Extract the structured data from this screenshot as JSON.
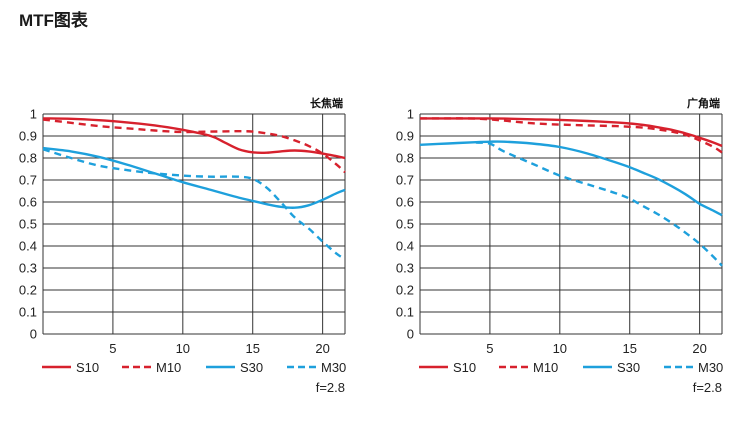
{
  "page": {
    "title": "MTF图表"
  },
  "colors": {
    "red": "#d7212d",
    "blue": "#1ea0dc",
    "grid": "#333333"
  },
  "chart_data": [
    {
      "type": "line",
      "title": "长焦端",
      "x_range": [
        0,
        21.6
      ],
      "ylim": [
        0,
        1
      ],
      "x_ticks": [
        5,
        10,
        15,
        20
      ],
      "y_ticks": [
        0,
        0.1,
        0.2,
        0.3,
        0.4,
        0.5,
        0.6,
        0.7,
        0.8,
        0.9,
        1
      ],
      "grid": true,
      "legend_position": "bottom",
      "footnote": "f=2.8",
      "series": [
        {
          "name": "S10",
          "color": "#d7212d",
          "dash": false,
          "x": [
            0,
            2,
            4,
            6,
            8,
            10,
            12,
            13,
            14,
            15,
            16,
            17,
            18,
            19,
            20,
            21,
            21.6
          ],
          "y": [
            0.98,
            0.978,
            0.972,
            0.962,
            0.948,
            0.928,
            0.9,
            0.87,
            0.84,
            0.826,
            0.824,
            0.83,
            0.834,
            0.83,
            0.82,
            0.808,
            0.8
          ]
        },
        {
          "name": "M10",
          "color": "#d7212d",
          "dash": true,
          "x": [
            0,
            2,
            4,
            6,
            8,
            10,
            12,
            14,
            15,
            16,
            17,
            18,
            19,
            20,
            21,
            21.6
          ],
          "y": [
            0.975,
            0.96,
            0.945,
            0.935,
            0.925,
            0.918,
            0.92,
            0.922,
            0.92,
            0.912,
            0.9,
            0.88,
            0.855,
            0.82,
            0.77,
            0.735
          ]
        },
        {
          "name": "S30",
          "color": "#1ea0dc",
          "dash": false,
          "x": [
            0,
            2,
            4,
            6,
            8,
            10,
            12,
            14,
            15,
            16,
            17,
            18,
            19,
            20,
            21,
            21.6
          ],
          "y": [
            0.845,
            0.83,
            0.805,
            0.77,
            0.73,
            0.69,
            0.655,
            0.62,
            0.605,
            0.59,
            0.578,
            0.574,
            0.585,
            0.61,
            0.64,
            0.655
          ]
        },
        {
          "name": "M30",
          "color": "#1ea0dc",
          "dash": true,
          "x": [
            0,
            2,
            4,
            6,
            8,
            10,
            12,
            14,
            15,
            16,
            17,
            18,
            19,
            20,
            21,
            21.6
          ],
          "y": [
            0.84,
            0.8,
            0.765,
            0.745,
            0.73,
            0.72,
            0.715,
            0.715,
            0.705,
            0.665,
            0.6,
            0.53,
            0.48,
            0.42,
            0.365,
            0.34
          ]
        }
      ]
    },
    {
      "type": "line",
      "title": "广角端",
      "x_range": [
        0,
        21.6
      ],
      "ylim": [
        0,
        1
      ],
      "x_ticks": [
        5,
        10,
        15,
        20
      ],
      "y_ticks": [
        0,
        0.1,
        0.2,
        0.3,
        0.4,
        0.5,
        0.6,
        0.7,
        0.8,
        0.9,
        1
      ],
      "grid": true,
      "legend_position": "bottom",
      "footnote": "f=2.8",
      "series": [
        {
          "name": "S10",
          "color": "#d7212d",
          "dash": false,
          "x": [
            0,
            2,
            4,
            6,
            8,
            10,
            12,
            14,
            15,
            16,
            17,
            18,
            19,
            20,
            21,
            21.6
          ],
          "y": [
            0.98,
            0.98,
            0.98,
            0.979,
            0.976,
            0.973,
            0.968,
            0.962,
            0.957,
            0.95,
            0.94,
            0.928,
            0.912,
            0.892,
            0.87,
            0.855
          ]
        },
        {
          "name": "M10",
          "color": "#d7212d",
          "dash": true,
          "x": [
            0,
            2,
            4,
            6,
            8,
            10,
            12,
            14,
            15,
            16,
            17,
            18,
            19,
            20,
            21,
            21.6
          ],
          "y": [
            0.98,
            0.98,
            0.979,
            0.97,
            0.958,
            0.952,
            0.948,
            0.945,
            0.942,
            0.938,
            0.93,
            0.92,
            0.905,
            0.88,
            0.85,
            0.825
          ]
        },
        {
          "name": "S30",
          "color": "#1ea0dc",
          "dash": false,
          "x": [
            0,
            2,
            4,
            5,
            6,
            8,
            10,
            12,
            14,
            15,
            16,
            17,
            18,
            19,
            20,
            21,
            21.6
          ],
          "y": [
            0.86,
            0.866,
            0.872,
            0.874,
            0.874,
            0.866,
            0.85,
            0.82,
            0.78,
            0.758,
            0.732,
            0.705,
            0.672,
            0.635,
            0.592,
            0.56,
            0.54
          ]
        },
        {
          "name": "M30",
          "color": "#1ea0dc",
          "dash": true,
          "x": [
            4,
            5,
            6,
            8,
            10,
            12,
            14,
            15,
            16,
            17,
            18,
            19,
            20,
            21,
            21.6
          ],
          "y": [
            0.87,
            0.865,
            0.83,
            0.775,
            0.72,
            0.68,
            0.64,
            0.615,
            0.58,
            0.545,
            0.505,
            0.46,
            0.41,
            0.35,
            0.31
          ]
        }
      ]
    }
  ]
}
